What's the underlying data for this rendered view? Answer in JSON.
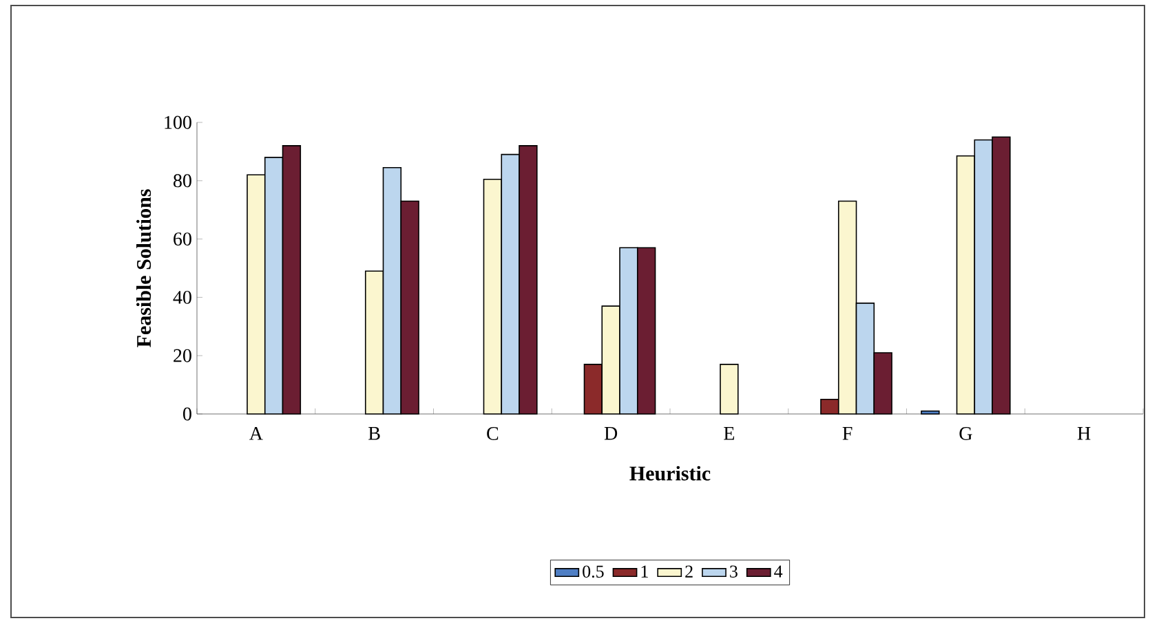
{
  "chart_data": {
    "type": "bar",
    "xlabel": "Heuristic",
    "ylabel": "Feasible Solutions",
    "categories": [
      "A",
      "B",
      "C",
      "D",
      "E",
      "F",
      "G",
      "H"
    ],
    "series": [
      {
        "name": "0.5",
        "color": "#4f7fc4",
        "values": [
          null,
          null,
          null,
          null,
          null,
          null,
          1,
          null
        ]
      },
      {
        "name": "1",
        "color": "#8b2a2a",
        "values": [
          null,
          null,
          null,
          17,
          null,
          5,
          null,
          null
        ]
      },
      {
        "name": "2",
        "color": "#fbf6cf",
        "values": [
          82,
          49,
          80.5,
          37,
          17,
          73,
          88.5,
          null
        ]
      },
      {
        "name": "3",
        "color": "#bcd6ee",
        "values": [
          88,
          84.5,
          89,
          57,
          null,
          38,
          94,
          null
        ]
      },
      {
        "name": "4",
        "color": "#6b1e32",
        "values": [
          92,
          73,
          92,
          57,
          null,
          21,
          95,
          null
        ]
      }
    ],
    "ylim": [
      0,
      100
    ],
    "yticks": [
      0,
      20,
      40,
      60,
      80,
      100
    ],
    "grid": false,
    "legend": "bottom"
  }
}
